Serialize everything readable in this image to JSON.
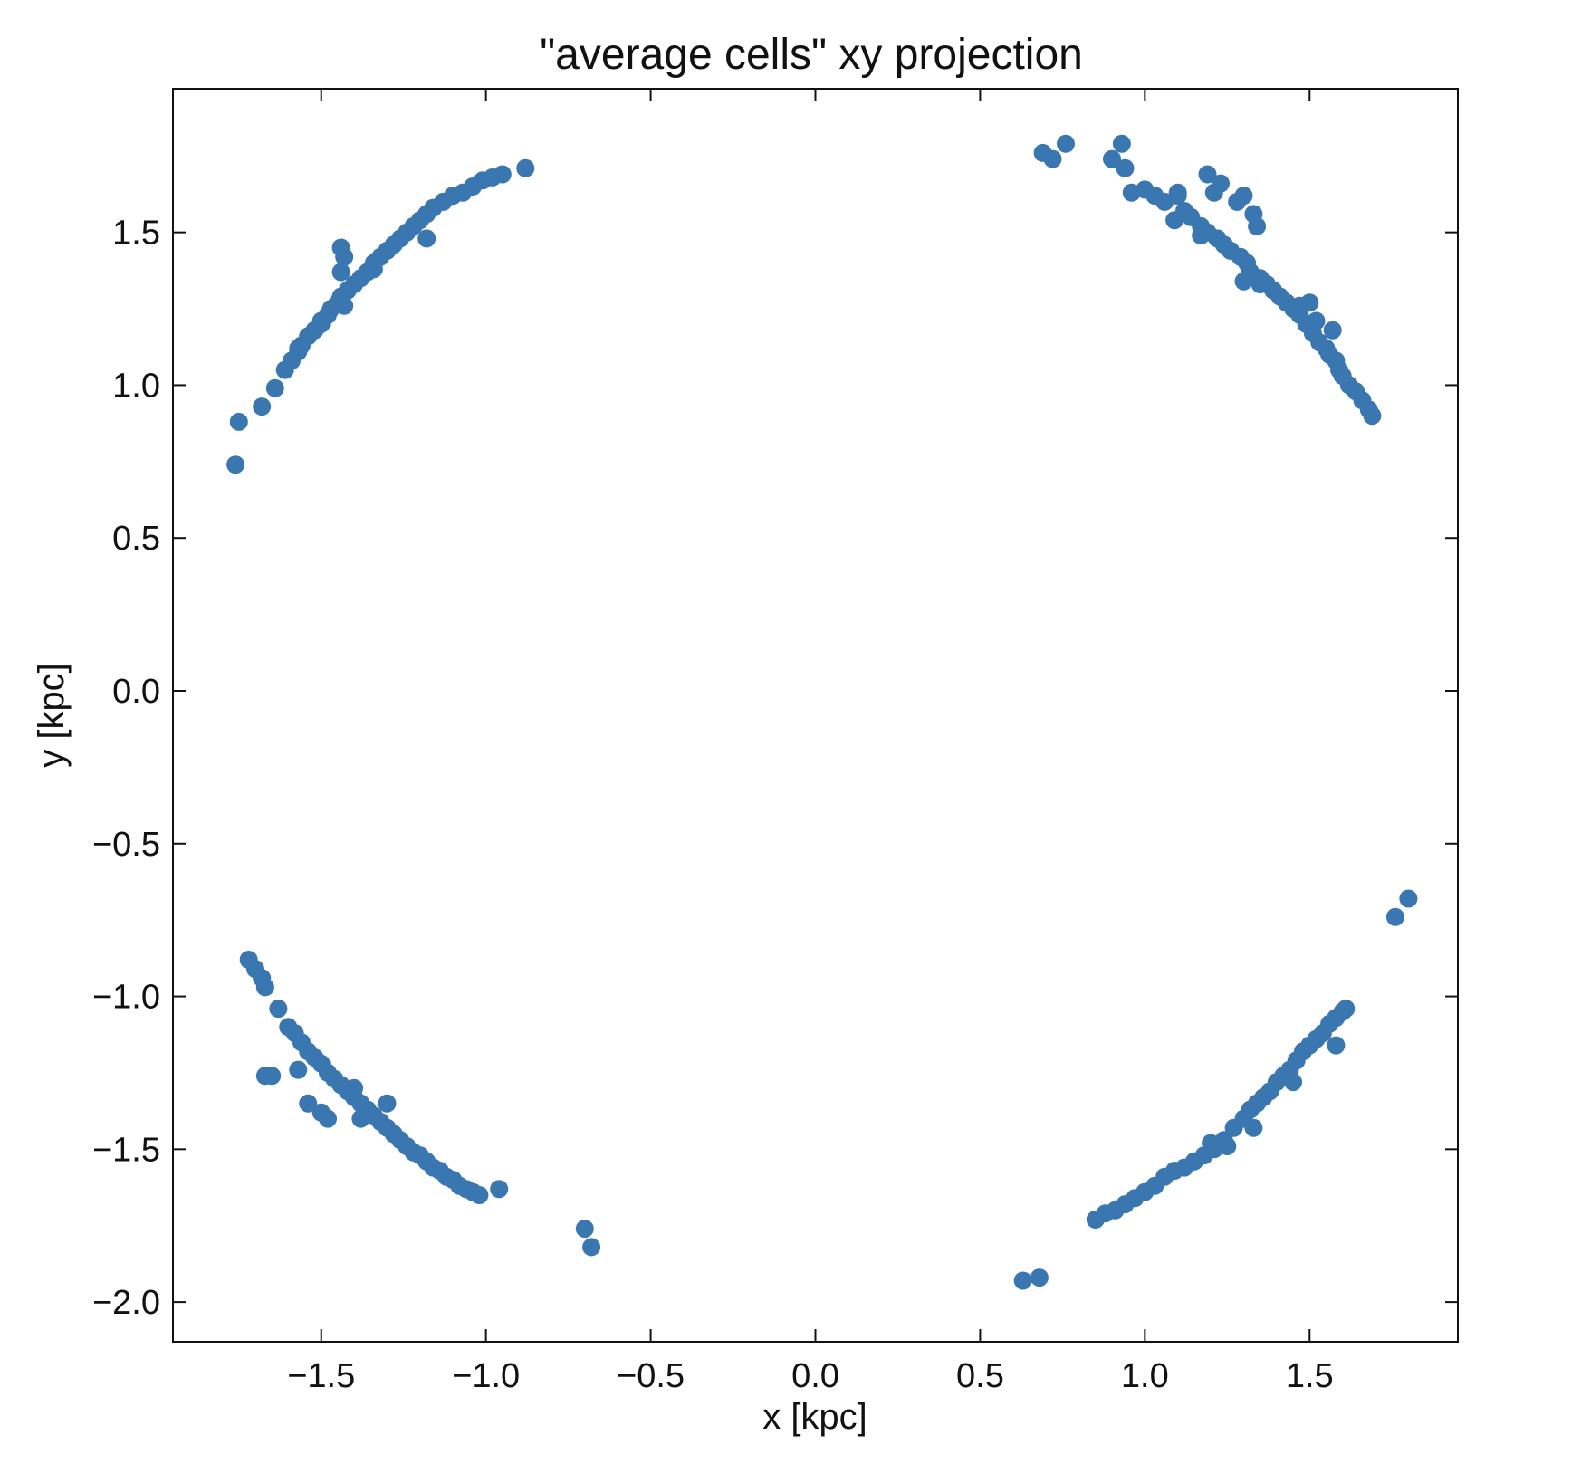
{
  "chart_data": {
    "type": "scatter",
    "title": "\"average cells\" xy projection",
    "xlabel": "x [kpc]",
    "ylabel": "y [kpc]",
    "xlim": [
      -1.95,
      1.95
    ],
    "ylim": [
      -2.13,
      1.97
    ],
    "xticks": [
      -1.5,
      -1.0,
      -0.5,
      0.0,
      0.5,
      1.0,
      1.5
    ],
    "xtick_labels": [
      "−1.5",
      "−1.0",
      "−0.5",
      "0.0",
      "0.5",
      "1.0",
      "1.5"
    ],
    "yticks": [
      -2.0,
      -1.5,
      -1.0,
      -0.5,
      0.0,
      0.5,
      1.0,
      1.5
    ],
    "ytick_labels": [
      "−2.0",
      "−1.5",
      "−1.0",
      "−0.5",
      "0.0",
      "0.5",
      "1.0",
      "1.5"
    ],
    "grid": false,
    "marker_color": "#3a76b0",
    "series": [
      {
        "x": [
          -1.76,
          -1.75,
          -1.68,
          -1.64,
          -1.61,
          -1.59,
          -1.57,
          -1.56,
          -1.54,
          -1.52,
          -1.5,
          -1.48,
          -1.47,
          -1.45,
          -1.44,
          -1.42,
          -1.4,
          -1.38,
          -1.36,
          -1.34,
          -1.32,
          -1.3,
          -1.28,
          -1.26,
          -1.24,
          -1.22,
          -1.2,
          -1.18,
          -1.16,
          -1.13,
          -1.1,
          -1.07,
          -1.04,
          -1.01,
          -0.98,
          -0.95,
          -0.88,
          -1.43,
          -1.44,
          -1.44,
          -1.5,
          -1.57,
          -1.34,
          -1.18,
          -1.43
        ],
        "y": [
          0.74,
          0.88,
          0.93,
          0.99,
          1.05,
          1.08,
          1.11,
          1.13,
          1.16,
          1.18,
          1.21,
          1.23,
          1.25,
          1.27,
          1.29,
          1.31,
          1.33,
          1.35,
          1.37,
          1.4,
          1.42,
          1.44,
          1.46,
          1.48,
          1.5,
          1.52,
          1.54,
          1.56,
          1.58,
          1.6,
          1.62,
          1.63,
          1.65,
          1.67,
          1.68,
          1.69,
          1.71,
          1.42,
          1.37,
          1.45,
          1.2,
          1.12,
          1.38,
          1.48,
          1.26
        ]
      },
      {
        "x": [
          0.69,
          0.72,
          0.76,
          0.9,
          0.93,
          0.94,
          0.96,
          1.0,
          1.03,
          1.06,
          1.09,
          1.1,
          1.12,
          1.14,
          1.17,
          1.19,
          1.19,
          1.21,
          1.22,
          1.23,
          1.24,
          1.26,
          1.28,
          1.29,
          1.3,
          1.31,
          1.32,
          1.33,
          1.35,
          1.37,
          1.39,
          1.41,
          1.43,
          1.45,
          1.47,
          1.49,
          1.51,
          1.53,
          1.55,
          1.56,
          1.58,
          1.59,
          1.6,
          1.62,
          1.64,
          1.66,
          1.68,
          1.69,
          1.1,
          1.17,
          1.3,
          1.34,
          1.47,
          1.52,
          1.57,
          1.35,
          1.5
        ],
        "y": [
          1.76,
          1.74,
          1.79,
          1.74,
          1.79,
          1.71,
          1.63,
          1.64,
          1.62,
          1.6,
          1.54,
          1.63,
          1.57,
          1.55,
          1.52,
          1.5,
          1.69,
          1.63,
          1.48,
          1.66,
          1.46,
          1.44,
          1.6,
          1.42,
          1.62,
          1.4,
          1.37,
          1.56,
          1.35,
          1.33,
          1.31,
          1.29,
          1.27,
          1.25,
          1.23,
          1.2,
          1.17,
          1.14,
          1.12,
          1.1,
          1.08,
          1.05,
          1.03,
          1.0,
          0.98,
          0.95,
          0.92,
          0.9,
          1.62,
          1.49,
          1.34,
          1.52,
          1.26,
          1.21,
          1.18,
          1.33,
          1.27
        ]
      },
      {
        "x": [
          -1.72,
          -1.7,
          -1.68,
          -1.67,
          -1.63,
          -1.6,
          -1.58,
          -1.56,
          -1.54,
          -1.52,
          -1.5,
          -1.48,
          -1.46,
          -1.44,
          -1.42,
          -1.4,
          -1.38,
          -1.36,
          -1.34,
          -1.32,
          -1.3,
          -1.28,
          -1.26,
          -1.24,
          -1.22,
          -1.2,
          -1.18,
          -1.16,
          -1.14,
          -1.12,
          -1.1,
          -1.08,
          -1.06,
          -1.04,
          -1.02,
          -0.96,
          -1.67,
          -1.65,
          -1.57,
          -1.54,
          -1.5,
          -1.48,
          -1.4,
          -1.38,
          -1.3,
          -0.7,
          -0.68
        ],
        "y": [
          -0.88,
          -0.91,
          -0.94,
          -0.97,
          -1.04,
          -1.1,
          -1.12,
          -1.15,
          -1.18,
          -1.2,
          -1.22,
          -1.25,
          -1.27,
          -1.29,
          -1.31,
          -1.33,
          -1.35,
          -1.37,
          -1.39,
          -1.41,
          -1.43,
          -1.45,
          -1.47,
          -1.49,
          -1.51,
          -1.52,
          -1.54,
          -1.56,
          -1.57,
          -1.59,
          -1.6,
          -1.62,
          -1.63,
          -1.64,
          -1.65,
          -1.63,
          -1.26,
          -1.26,
          -1.24,
          -1.35,
          -1.38,
          -1.4,
          -1.3,
          -1.4,
          -1.35,
          -1.76,
          -1.82
        ]
      },
      {
        "x": [
          0.63,
          0.68,
          0.85,
          0.88,
          0.91,
          0.94,
          0.97,
          1.0,
          1.03,
          1.06,
          1.09,
          1.12,
          1.15,
          1.18,
          1.21,
          1.24,
          1.27,
          1.3,
          1.32,
          1.34,
          1.36,
          1.38,
          1.4,
          1.42,
          1.44,
          1.46,
          1.48,
          1.5,
          1.52,
          1.54,
          1.56,
          1.58,
          1.6,
          1.61,
          1.25,
          1.33,
          1.45,
          1.58,
          1.2,
          1.76,
          1.8
        ],
        "y": [
          -1.93,
          -1.92,
          -1.73,
          -1.71,
          -1.7,
          -1.68,
          -1.66,
          -1.64,
          -1.62,
          -1.59,
          -1.57,
          -1.56,
          -1.54,
          -1.52,
          -1.5,
          -1.47,
          -1.43,
          -1.4,
          -1.37,
          -1.35,
          -1.33,
          -1.31,
          -1.28,
          -1.26,
          -1.24,
          -1.21,
          -1.18,
          -1.16,
          -1.14,
          -1.12,
          -1.09,
          -1.07,
          -1.05,
          -1.04,
          -1.49,
          -1.43,
          -1.28,
          -1.16,
          -1.48,
          -0.74,
          -0.68
        ]
      }
    ]
  }
}
